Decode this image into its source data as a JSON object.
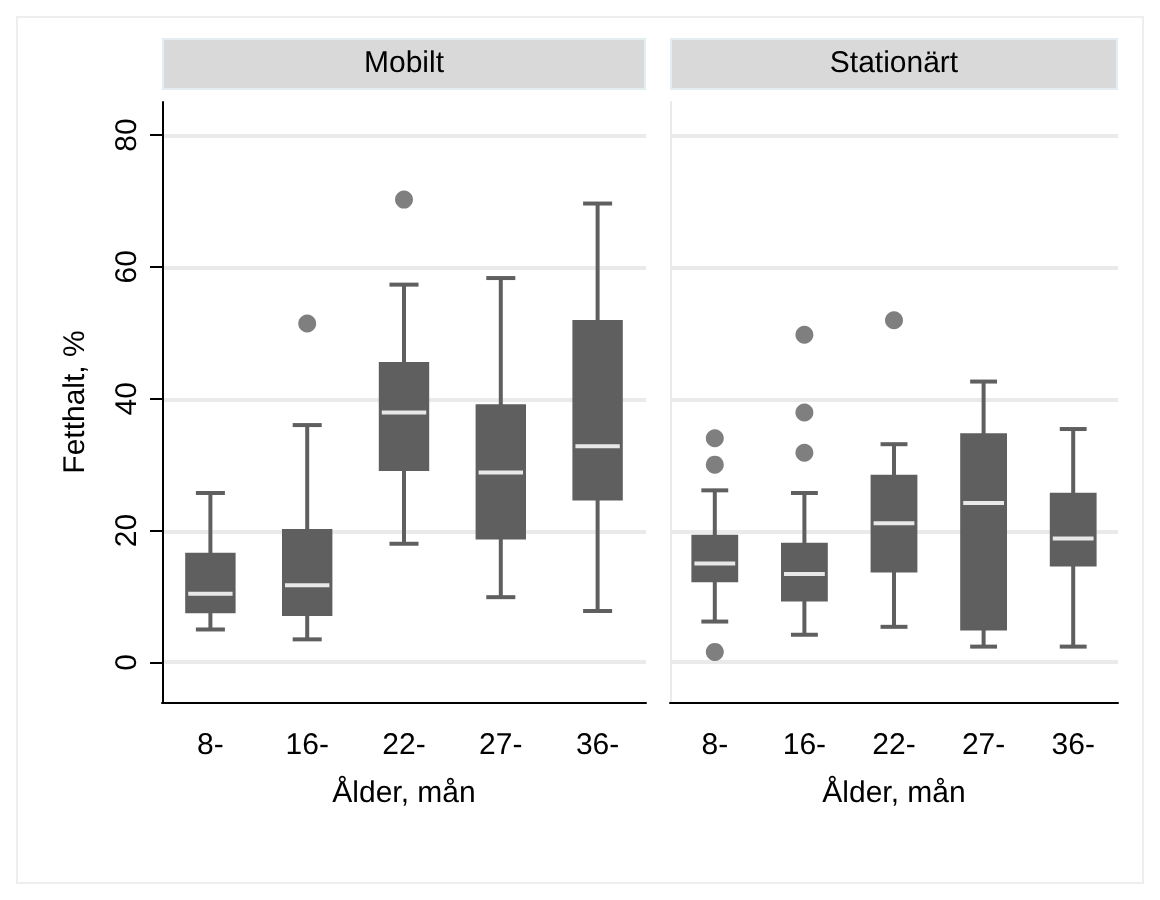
{
  "chart_data": [
    {
      "type": "box",
      "title": "Mobilt",
      "xlabel": "Ålder, mån",
      "ylabel": "Fetthalt, %",
      "categories": [
        "8-",
        "16-",
        "22-",
        "27-",
        "36-"
      ],
      "ylim": [
        -6,
        85
      ],
      "yticks": [
        0,
        20,
        40,
        60,
        80
      ],
      "grid": "y",
      "series": [
        {
          "color": "#5f5f5f",
          "boxes": [
            {
              "low": 5.0,
              "q1": 7.6,
              "median": 10.4,
              "q3": 16.5,
              "high": 25.7
            },
            {
              "low": 3.5,
              "q1": 7.2,
              "median": 11.7,
              "q3": 20.1,
              "high": 36.0,
              "outliers": [
                51.4
              ]
            },
            {
              "low": 18.0,
              "q1": 29.2,
              "median": 37.9,
              "q3": 45.4,
              "high": 57.3,
              "outliers": [
                70.2
              ]
            },
            {
              "low": 9.9,
              "q1": 18.8,
              "median": 28.8,
              "q3": 39.0,
              "high": 58.3
            },
            {
              "low": 7.8,
              "q1": 24.7,
              "median": 32.8,
              "q3": 51.8,
              "high": 69.6
            }
          ]
        }
      ]
    },
    {
      "type": "box",
      "title": "Stationärt",
      "xlabel": "Ålder, mån",
      "categories": [
        "8-",
        "16-",
        "22-",
        "27-",
        "36-"
      ],
      "ylim": [
        -6,
        85
      ],
      "yticks": [
        0,
        20,
        40,
        60,
        80
      ],
      "grid": "y",
      "tick_labels": "x",
      "series": [
        {
          "color": "#5f5f5f",
          "boxes": [
            {
              "low": 6.2,
              "q1": 12.3,
              "median": 15.0,
              "q3": 19.2,
              "high": 26.1,
              "outliers": [
                34.0,
                30.0,
                1.6
              ]
            },
            {
              "low": 4.2,
              "q1": 9.4,
              "median": 13.4,
              "q3": 18.0,
              "high": 25.7,
              "outliers": [
                49.7,
                37.9,
                31.8
              ]
            },
            {
              "low": 5.4,
              "q1": 13.8,
              "median": 21.1,
              "q3": 28.3,
              "high": 33.1,
              "outliers": [
                51.9
              ]
            },
            {
              "low": 2.4,
              "q1": 5.0,
              "median": 24.2,
              "q3": 34.6,
              "high": 42.6
            },
            {
              "low": 2.4,
              "q1": 14.7,
              "median": 18.8,
              "q3": 25.6,
              "high": 35.4
            }
          ]
        }
      ]
    }
  ]
}
